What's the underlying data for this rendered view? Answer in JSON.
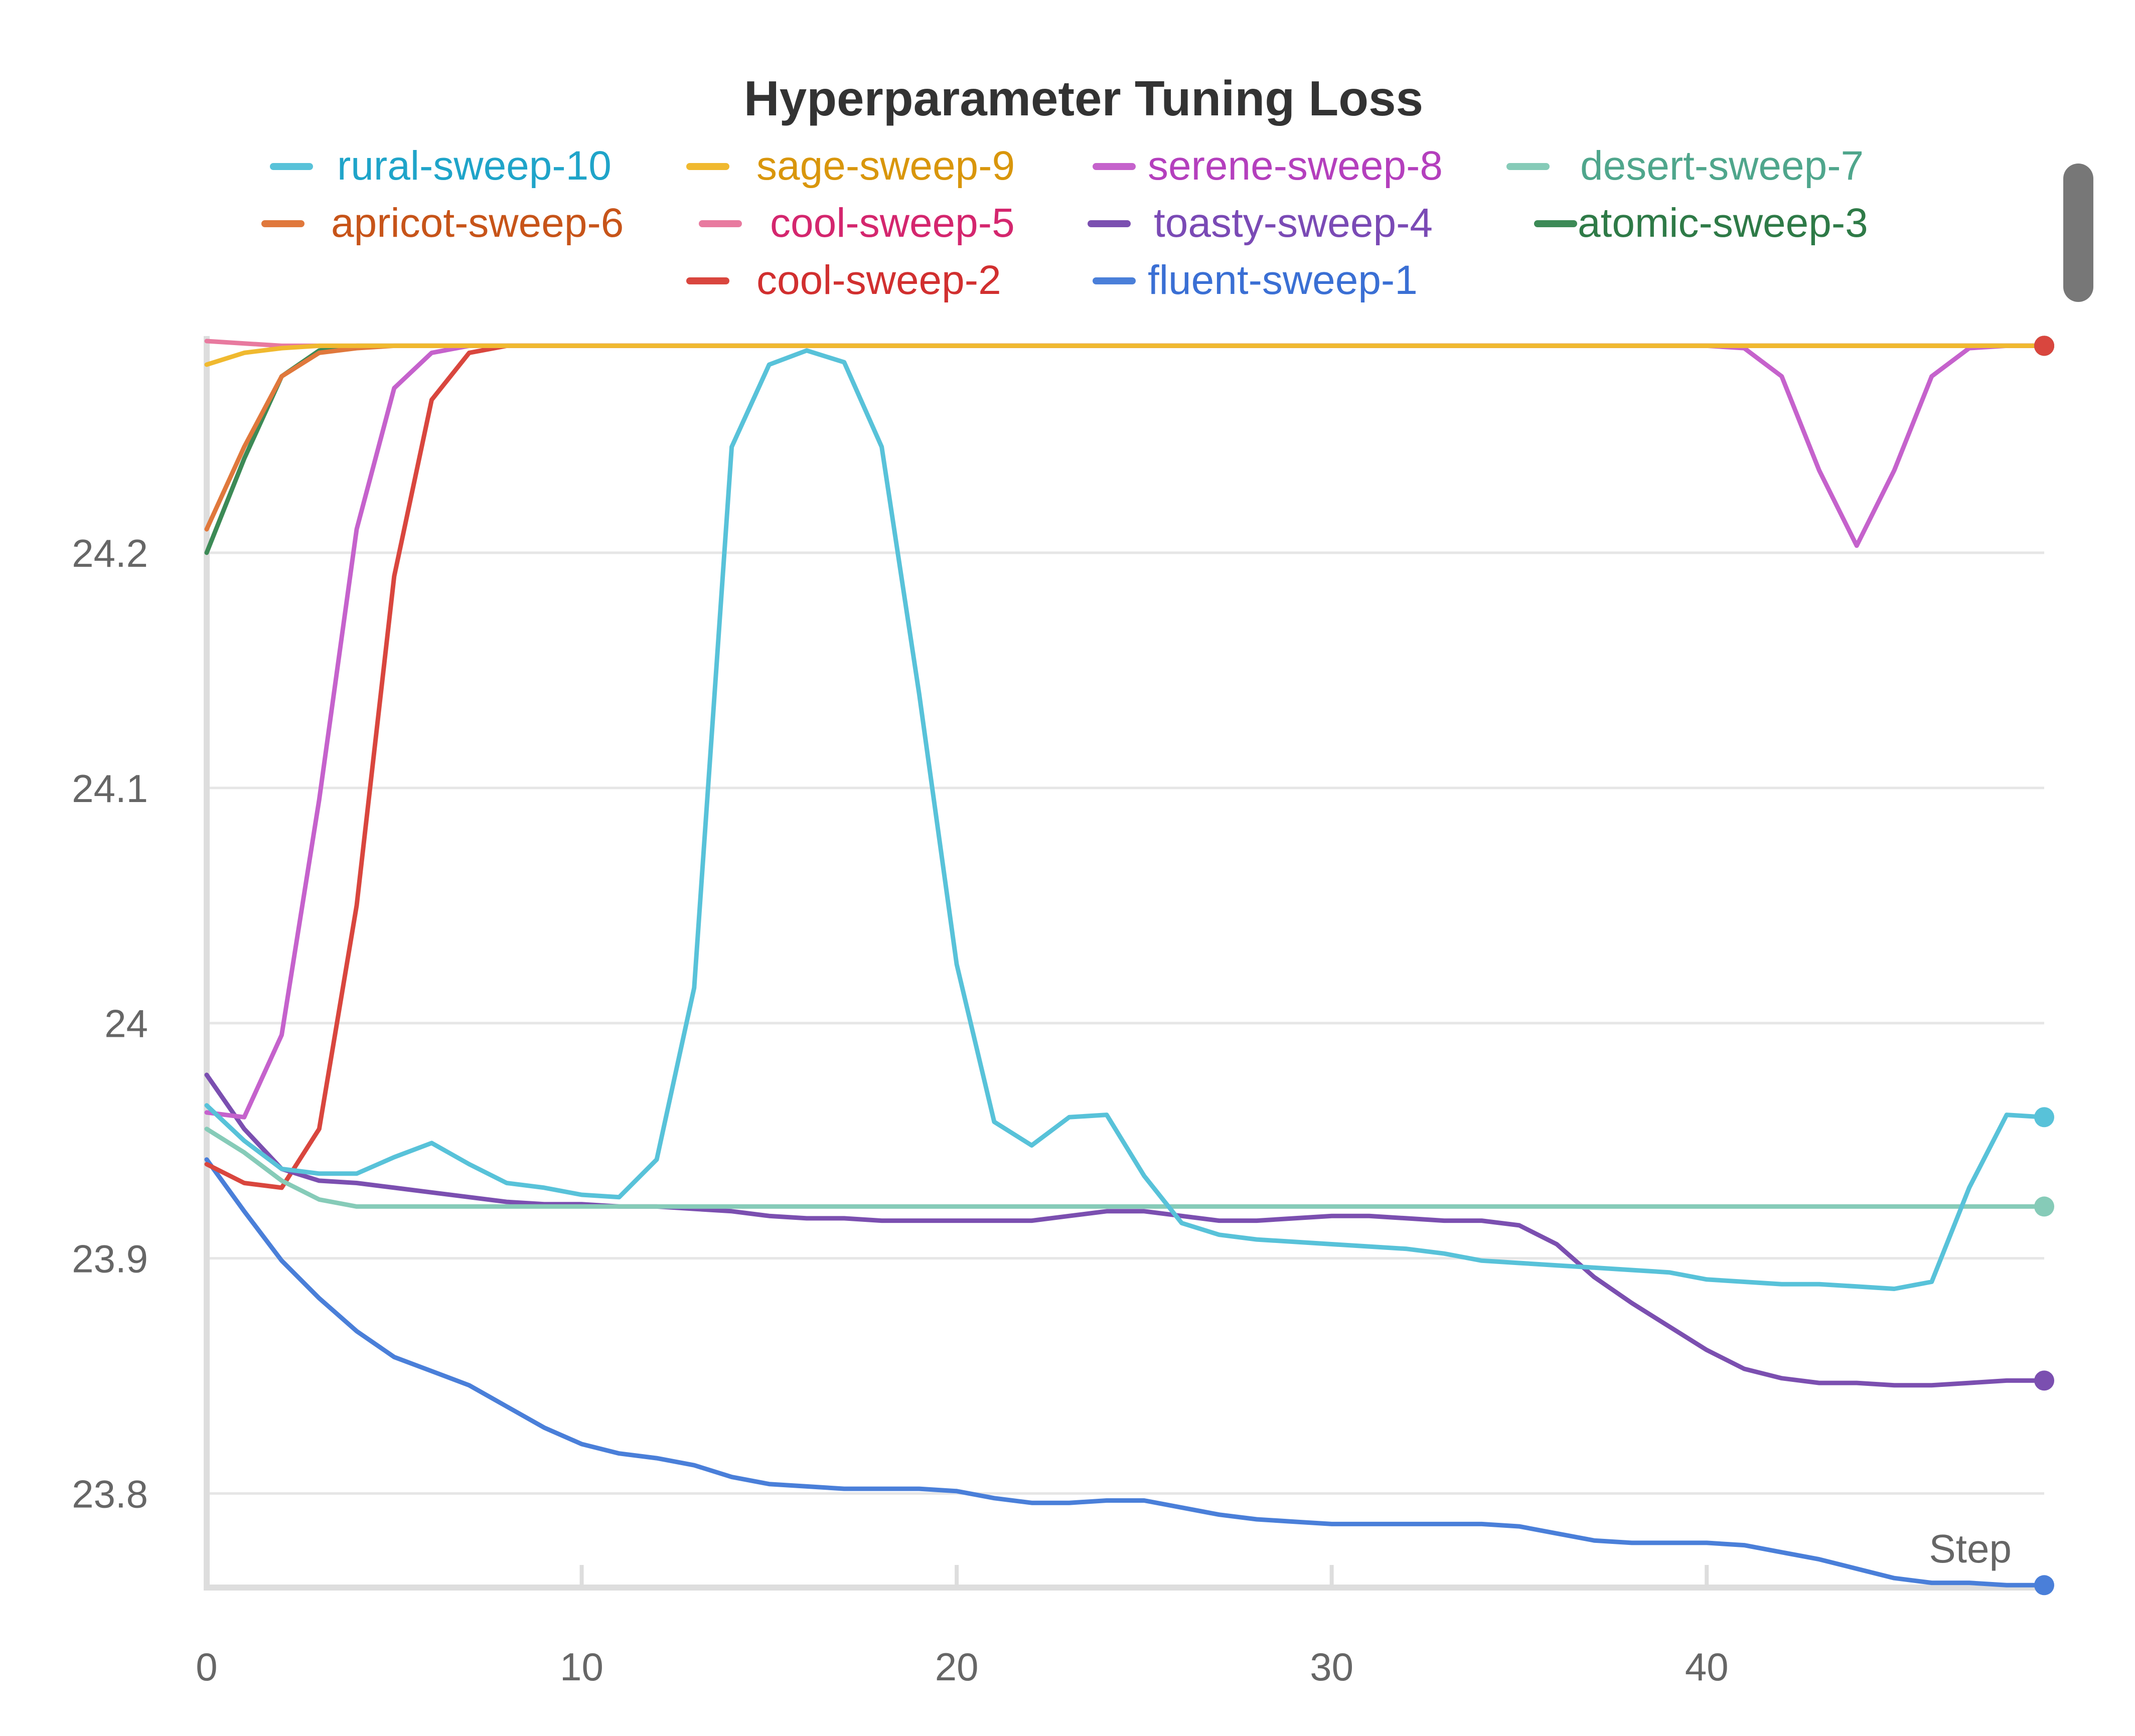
{
  "chart_data": {
    "type": "line",
    "title": "Hyperparameter Tuning Loss",
    "xlabel": "Step",
    "ylabel": "",
    "xlim": [
      0,
      49
    ],
    "ylim": [
      23.76,
      24.29
    ],
    "x_ticks": [
      0,
      10,
      20,
      30,
      40
    ],
    "y_ticks": [
      23.8,
      23.9,
      24,
      24.1,
      24.2
    ],
    "y_tick_labels": [
      "23.8",
      "23.9",
      "24",
      "24.1",
      "24.2"
    ],
    "grid": true,
    "legend_position": "top",
    "series": [
      {
        "name": "rural-sweep-10",
        "color": "#58c2d9",
        "text_color": "#1fa4c9",
        "values": [
          23.965,
          23.95,
          23.938,
          23.936,
          23.936,
          23.943,
          23.949,
          23.94,
          23.932,
          23.93,
          23.927,
          23.926,
          23.942,
          24.015,
          24.245,
          24.28,
          24.286,
          24.281,
          24.245,
          24.14,
          24.025,
          23.958,
          23.948,
          23.96,
          23.961,
          23.935,
          23.915,
          23.91,
          23.908,
          23.907,
          23.906,
          23.905,
          23.904,
          23.902,
          23.899,
          23.898,
          23.897,
          23.896,
          23.895,
          23.894,
          23.891,
          23.89,
          23.889,
          23.889,
          23.888,
          23.887,
          23.89,
          23.93,
          23.961,
          23.96
        ]
      },
      {
        "name": "sage-sweep-9",
        "color": "#f0b92f",
        "text_color": "#d9960b",
        "values": [
          24.28,
          24.285,
          24.287,
          24.288,
          24.288,
          24.288,
          24.288,
          24.288,
          24.288,
          24.288,
          24.288,
          24.288,
          24.288,
          24.288,
          24.288,
          24.288,
          24.288,
          24.288,
          24.288,
          24.288,
          24.288,
          24.288,
          24.288,
          24.288,
          24.288,
          24.288,
          24.288,
          24.288,
          24.288,
          24.288,
          24.288,
          24.288,
          24.288,
          24.288,
          24.288,
          24.288,
          24.288,
          24.288,
          24.288,
          24.288,
          24.288,
          24.288,
          24.288,
          24.288,
          24.288,
          24.288,
          24.288,
          24.288,
          24.288,
          24.288
        ]
      },
      {
        "name": "serene-sweep-8",
        "color": "#c562cc",
        "text_color": "#b43fbd",
        "values": [
          23.962,
          23.96,
          23.995,
          24.095,
          24.21,
          24.27,
          24.285,
          24.288,
          24.288,
          24.288,
          24.288,
          24.288,
          24.288,
          24.288,
          24.288,
          24.288,
          24.288,
          24.288,
          24.288,
          24.288,
          24.288,
          24.288,
          24.288,
          24.288,
          24.288,
          24.288,
          24.288,
          24.288,
          24.288,
          24.288,
          24.288,
          24.288,
          24.288,
          24.288,
          24.288,
          24.288,
          24.288,
          24.288,
          24.288,
          24.288,
          24.288,
          24.287,
          24.275,
          24.235,
          24.203,
          24.235,
          24.275,
          24.287,
          24.288,
          24.288
        ]
      },
      {
        "name": "desert-sweep-7",
        "color": "#86cbb8",
        "text_color": "#4fa68c",
        "values": [
          23.955,
          23.945,
          23.933,
          23.925,
          23.922,
          23.922,
          23.922,
          23.922,
          23.922,
          23.922,
          23.922,
          23.922,
          23.922,
          23.922,
          23.922,
          23.922,
          23.922,
          23.922,
          23.922,
          23.922,
          23.922,
          23.922,
          23.922,
          23.922,
          23.922,
          23.922,
          23.922,
          23.922,
          23.922,
          23.922,
          23.922,
          23.922,
          23.922,
          23.922,
          23.922,
          23.922,
          23.922,
          23.922,
          23.922,
          23.922,
          23.922,
          23.922,
          23.922,
          23.922,
          23.922,
          23.922,
          23.922,
          23.922,
          23.922,
          23.922
        ]
      },
      {
        "name": "apricot-sweep-6",
        "color": "#e0783c",
        "text_color": "#c75419",
        "values": [
          24.21,
          24.245,
          24.275,
          24.285,
          24.287,
          24.288,
          24.288,
          24.288,
          24.288,
          24.288,
          24.288,
          24.288,
          24.288,
          24.288,
          24.288,
          24.288,
          24.288,
          24.288,
          24.288,
          24.288,
          24.288,
          24.288,
          24.288,
          24.288,
          24.288,
          24.288,
          24.288,
          24.288,
          24.288,
          24.288,
          24.288,
          24.288,
          24.288,
          24.288,
          24.288,
          24.288,
          24.288,
          24.288,
          24.288,
          24.288,
          24.288,
          24.288,
          24.288,
          24.288,
          24.288,
          24.288,
          24.288,
          24.288,
          24.288,
          24.288
        ]
      },
      {
        "name": "cool-sweep-5",
        "color": "#e87a9f",
        "text_color": "#d4266e",
        "values": [
          24.29,
          24.289,
          24.288,
          24.288,
          24.288,
          24.288,
          24.288,
          24.288,
          24.288,
          24.288,
          24.288,
          24.288,
          24.288,
          24.288,
          24.288,
          24.288,
          24.288,
          24.288,
          24.288,
          24.288,
          24.288,
          24.288,
          24.288,
          24.288,
          24.288,
          24.288,
          24.288,
          24.288,
          24.288,
          24.288,
          24.288,
          24.288,
          24.288,
          24.288,
          24.288,
          24.288,
          24.288,
          24.288,
          24.288,
          24.288,
          24.288,
          24.288,
          24.288,
          24.288,
          24.288,
          24.288,
          24.288,
          24.288,
          24.288,
          24.288
        ]
      },
      {
        "name": "toasty-sweep-4",
        "color": "#7b4fb0",
        "text_color": "#7a4ab5",
        "values": [
          23.978,
          23.955,
          23.938,
          23.933,
          23.932,
          23.93,
          23.928,
          23.926,
          23.924,
          23.923,
          23.923,
          23.922,
          23.922,
          23.921,
          23.92,
          23.918,
          23.917,
          23.917,
          23.916,
          23.916,
          23.916,
          23.916,
          23.916,
          23.918,
          23.92,
          23.92,
          23.918,
          23.916,
          23.916,
          23.917,
          23.918,
          23.918,
          23.917,
          23.916,
          23.916,
          23.914,
          23.906,
          23.892,
          23.881,
          23.871,
          23.861,
          23.853,
          23.849,
          23.847,
          23.847,
          23.846,
          23.846,
          23.847,
          23.848,
          23.848
        ]
      },
      {
        "name": "atomic-sweep-3",
        "color": "#3c8a56",
        "text_color": "#2e7a47",
        "values": [
          24.2,
          24.24,
          24.275,
          24.286,
          24.288,
          24.288,
          24.288,
          24.288,
          24.288,
          24.288,
          24.288,
          24.288,
          24.288,
          24.288,
          24.288,
          24.288,
          24.288,
          24.288,
          24.288,
          24.288,
          24.288,
          24.288,
          24.288,
          24.288,
          24.288,
          24.288,
          24.288,
          24.288,
          24.288,
          24.288,
          24.288,
          24.288,
          24.288,
          24.288,
          24.288,
          24.288,
          24.288,
          24.288,
          24.288,
          24.288,
          24.288,
          24.288,
          24.288,
          24.288,
          24.288,
          24.288,
          24.288,
          24.288,
          24.288,
          24.288
        ]
      },
      {
        "name": "cool-sweep-2",
        "color": "#d9463e",
        "text_color": "#d12f2f",
        "values": [
          23.94,
          23.932,
          23.93,
          23.955,
          24.05,
          24.19,
          24.265,
          24.285,
          24.288,
          24.288,
          24.288,
          24.288,
          24.288,
          24.288,
          24.288,
          24.288,
          24.288,
          24.288,
          24.288,
          24.288,
          24.288,
          24.288,
          24.288,
          24.288,
          24.288,
          24.288,
          24.288,
          24.288,
          24.288,
          24.288,
          24.288,
          24.288,
          24.288,
          24.288,
          24.288,
          24.288,
          24.288,
          24.288,
          24.288,
          24.288,
          24.288,
          24.288,
          24.288,
          24.288,
          24.288,
          24.288,
          24.288,
          24.288,
          24.288,
          24.288
        ]
      },
      {
        "name": "fluent-sweep-1",
        "color": "#4a7fd9",
        "text_color": "#3a6fd4",
        "values": [
          23.942,
          23.92,
          23.899,
          23.883,
          23.869,
          23.858,
          23.852,
          23.846,
          23.837,
          23.828,
          23.821,
          23.817,
          23.815,
          23.812,
          23.807,
          23.804,
          23.803,
          23.802,
          23.802,
          23.802,
          23.801,
          23.798,
          23.796,
          23.796,
          23.797,
          23.797,
          23.794,
          23.791,
          23.789,
          23.788,
          23.787,
          23.787,
          23.787,
          23.787,
          23.787,
          23.786,
          23.783,
          23.78,
          23.779,
          23.779,
          23.779,
          23.778,
          23.775,
          23.772,
          23.768,
          23.764,
          23.762,
          23.762,
          23.761,
          23.761
        ]
      }
    ]
  }
}
